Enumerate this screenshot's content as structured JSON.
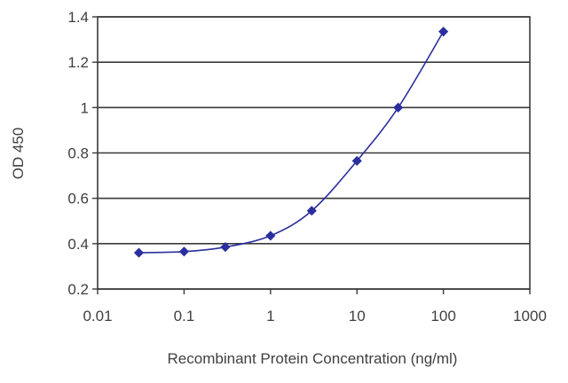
{
  "chart_data": {
    "type": "scatter",
    "title": "",
    "xlabel": "Recombinant Protein Concentration (ng/ml)",
    "ylabel": "OD 450",
    "x_scale": "log",
    "xlim": [
      0.01,
      1000
    ],
    "ylim": [
      0.2,
      1.4
    ],
    "x_ticks": [
      "0.01",
      "0.1",
      "1",
      "10",
      "100",
      "1000"
    ],
    "y_ticks": [
      "0.2",
      "0.4",
      "0.6",
      "0.8",
      "1",
      "1.2",
      "1.4"
    ],
    "grid": "horizontal",
    "series": [
      {
        "points": [
          {
            "x": 0.03,
            "y": 0.36
          },
          {
            "x": 0.1,
            "y": 0.365
          },
          {
            "x": 0.3,
            "y": 0.385
          },
          {
            "x": 1,
            "y": 0.435
          },
          {
            "x": 3,
            "y": 0.545
          },
          {
            "x": 10,
            "y": 0.765
          },
          {
            "x": 30,
            "y": 1.0
          },
          {
            "x": 100,
            "y": 1.335
          }
        ]
      }
    ],
    "colors": {
      "series": "#2b2f9e",
      "grid": "#3a3a3a",
      "axis": "#3a3a3a",
      "text": "#404040"
    }
  }
}
